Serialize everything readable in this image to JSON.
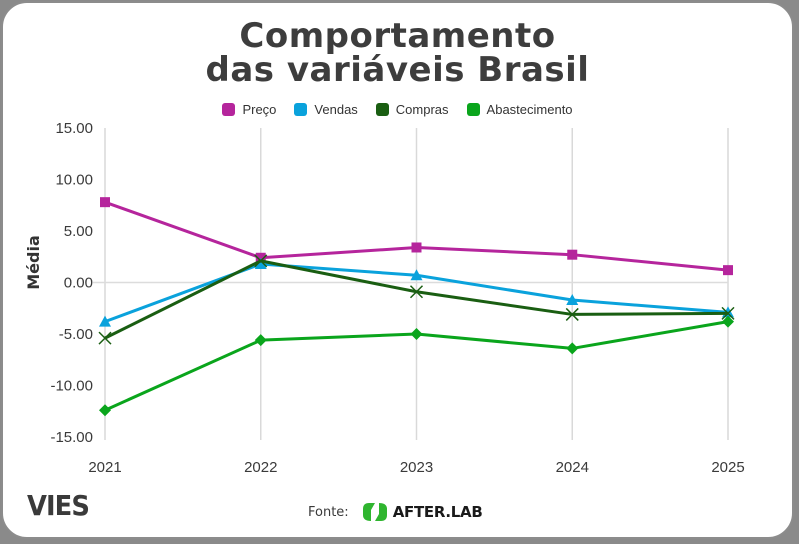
{
  "chart_data": {
    "type": "line",
    "title_lines": [
      "Comportamento",
      "das variáveis Brasil"
    ],
    "xlabel": "",
    "ylabel": "Média",
    "categories": [
      "2021",
      "2022",
      "2023",
      "2024",
      "2025"
    ],
    "yticks": [
      "15.00",
      "10.00",
      "5.00",
      "0.00",
      "-5.00",
      "-10.00",
      "-15.00"
    ],
    "ytick_values": [
      15,
      10,
      5,
      0,
      -5,
      -10,
      -15
    ],
    "ylim": [
      -15,
      15
    ],
    "grid": "vertical lines + zero line",
    "legend_position": "top-center",
    "series": [
      {
        "name": "Preço",
        "color": "#b5259c",
        "marker": "square",
        "values": [
          7.8,
          2.4,
          3.4,
          2.7,
          1.2
        ]
      },
      {
        "name": "Vendas",
        "color": "#0aa2dc",
        "marker": "triangle",
        "values": [
          -3.8,
          1.8,
          0.7,
          -1.7,
          -2.9
        ]
      },
      {
        "name": "Compras",
        "color": "#1a5e12",
        "marker": "x",
        "values": [
          -5.4,
          2.1,
          -0.9,
          -3.1,
          -3.0
        ]
      },
      {
        "name": "Abastecimento",
        "color": "#0aa51c",
        "marker": "diamond",
        "values": [
          -12.4,
          -5.6,
          -5.0,
          -6.4,
          -3.8
        ]
      }
    ]
  },
  "footer": {
    "brand_logo": "VIES",
    "source_label": "Fonte:",
    "source_logo_text": "AFTER.LAB",
    "source_logo_color": "#2fb52f"
  }
}
